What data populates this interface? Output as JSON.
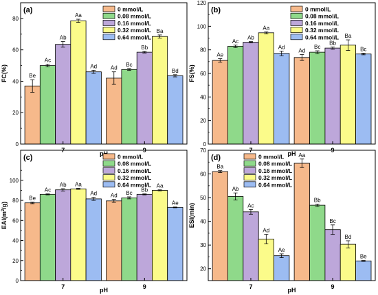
{
  "chart_data": [
    {
      "type": "bar",
      "panel": "(a)",
      "categories": [
        "7",
        "9"
      ],
      "xlabel": "pH",
      "ylabel": "FC(%)",
      "ylim": [
        0,
        90
      ],
      "yticks": [
        0,
        20,
        40,
        60,
        80
      ],
      "legend_position": "top-right",
      "series": [
        {
          "name": "0 mmol/L",
          "values": [
            37,
            42
          ],
          "errors": [
            4,
            4
          ],
          "letters": [
            "Be",
            "Ad"
          ]
        },
        {
          "name": "0.08 mmol/L",
          "values": [
            50,
            47.5
          ],
          "errors": [
            0.8,
            0.6
          ],
          "letters": [
            "Ac",
            "Bc"
          ]
        },
        {
          "name": "0.16 mmol/L",
          "values": [
            63.5,
            58.5
          ],
          "errors": [
            1.8,
            0.5
          ],
          "letters": [
            "Ab",
            "Bb"
          ]
        },
        {
          "name": "0.32 mmol/L",
          "values": [
            78.5,
            68.5
          ],
          "errors": [
            1,
            1
          ],
          "letters": [
            "Aa",
            "Ba"
          ]
        },
        {
          "name": "0.64 mmol/L",
          "values": [
            46,
            43.5
          ],
          "errors": [
            1,
            0.7
          ],
          "letters": [
            "Ad",
            "Bd"
          ]
        }
      ]
    },
    {
      "type": "bar",
      "panel": "(b)",
      "categories": [
        "7",
        "9"
      ],
      "xlabel": "pH",
      "ylabel": "FS(%)",
      "ylim": [
        0,
        120
      ],
      "yticks": [
        0,
        20,
        40,
        60,
        80,
        100,
        120
      ],
      "legend_position": "top-right",
      "series": [
        {
          "name": "0 mmol/L",
          "values": [
            71,
            73.5
          ],
          "errors": [
            1.5,
            2.5
          ],
          "letters": [
            "Ae",
            "Ad"
          ]
        },
        {
          "name": "0.08 mmol/L",
          "values": [
            83,
            78
          ],
          "errors": [
            1,
            1.2
          ],
          "letters": [
            "Ac",
            "Bc"
          ]
        },
        {
          "name": "0.16 mmol/L",
          "values": [
            86.5,
            81.5
          ],
          "errors": [
            0.5,
            1
          ],
          "letters": [
            "Ab",
            "Bb"
          ]
        },
        {
          "name": "0.32 mmol/L",
          "values": [
            94.5,
            84
          ],
          "errors": [
            0.8,
            4.5
          ],
          "letters": [
            "Aa",
            "Ba"
          ]
        },
        {
          "name": "0.64 mmol/L",
          "values": [
            77,
            76.5
          ],
          "errors": [
            2,
            0.7
          ],
          "letters": [
            "Ad",
            "Bc"
          ]
        }
      ]
    },
    {
      "type": "bar",
      "panel": "(c)",
      "categories": [
        "7",
        "9"
      ],
      "xlabel": "pH",
      "ylabel_prefix": "EAI(m",
      "ylabel_sup": "2",
      "ylabel_suffix": "/g)",
      "ylim": [
        0,
        130
      ],
      "yticks": [
        0,
        20,
        40,
        60,
        80,
        100
      ],
      "legend_position": "top-right",
      "series": [
        {
          "name": "0 mmol/L",
          "values": [
            77.5,
            79.5
          ],
          "errors": [
            0.8,
            1.5
          ],
          "letters": [
            "Be",
            "Ad"
          ]
        },
        {
          "name": "0.08 mmol/L",
          "values": [
            86,
            82.5
          ],
          "errors": [
            0.5,
            1
          ],
          "letters": [
            "Ac",
            "Bc"
          ]
        },
        {
          "name": "0.16 mmol/L",
          "values": [
            90.5,
            86
          ],
          "errors": [
            1.2,
            0.5
          ],
          "letters": [
            "Ab",
            "Bb"
          ]
        },
        {
          "name": "0.32 mmol/L",
          "values": [
            91.5,
            90
          ],
          "errors": [
            0.5,
            0.5
          ],
          "letters": [
            "Aa",
            "Aa"
          ]
        },
        {
          "name": "0.64 mmol/L",
          "values": [
            81.5,
            73
          ],
          "errors": [
            1.5,
            0.4
          ],
          "letters": [
            "Ad",
            "Ae"
          ]
        }
      ]
    },
    {
      "type": "bar",
      "panel": "(d)",
      "categories": [
        "7",
        "9"
      ],
      "xlabel": "pH",
      "ylabel": "ESI(min)",
      "ylim": [
        15,
        70
      ],
      "yticks": [
        20,
        30,
        40,
        50,
        60,
        70
      ],
      "legend_position": "top-left",
      "series": [
        {
          "name": "0 mmol/L",
          "values": [
            61,
            64.5
          ],
          "errors": [
            0.4,
            1.8
          ],
          "letters": [
            "Ba",
            "Aa"
          ]
        },
        {
          "name": "0.08 mmol/L",
          "values": [
            50.5,
            46.8
          ],
          "errors": [
            1.5,
            0.5
          ],
          "letters": [
            "Ab",
            "Bb"
          ]
        },
        {
          "name": "0.16 mmol/L",
          "values": [
            44,
            36.5
          ],
          "errors": [
            1,
            2
          ],
          "letters": [
            "Ac",
            "Bc"
          ]
        },
        {
          "name": "0.32 mmol/L",
          "values": [
            32.5,
            30.3
          ],
          "errors": [
            2,
            1.5
          ],
          "letters": [
            "Ad",
            "Bd"
          ]
        },
        {
          "name": "0.64 mmol/L",
          "values": [
            25.5,
            23.3
          ],
          "errors": [
            0.8,
            0.2
          ],
          "letters": [
            "Ae",
            "Be"
          ]
        }
      ]
    }
  ],
  "colors": [
    "#f6b98b",
    "#8fd98a",
    "#bda7da",
    "#fbfb8a",
    "#9cbcf2"
  ]
}
